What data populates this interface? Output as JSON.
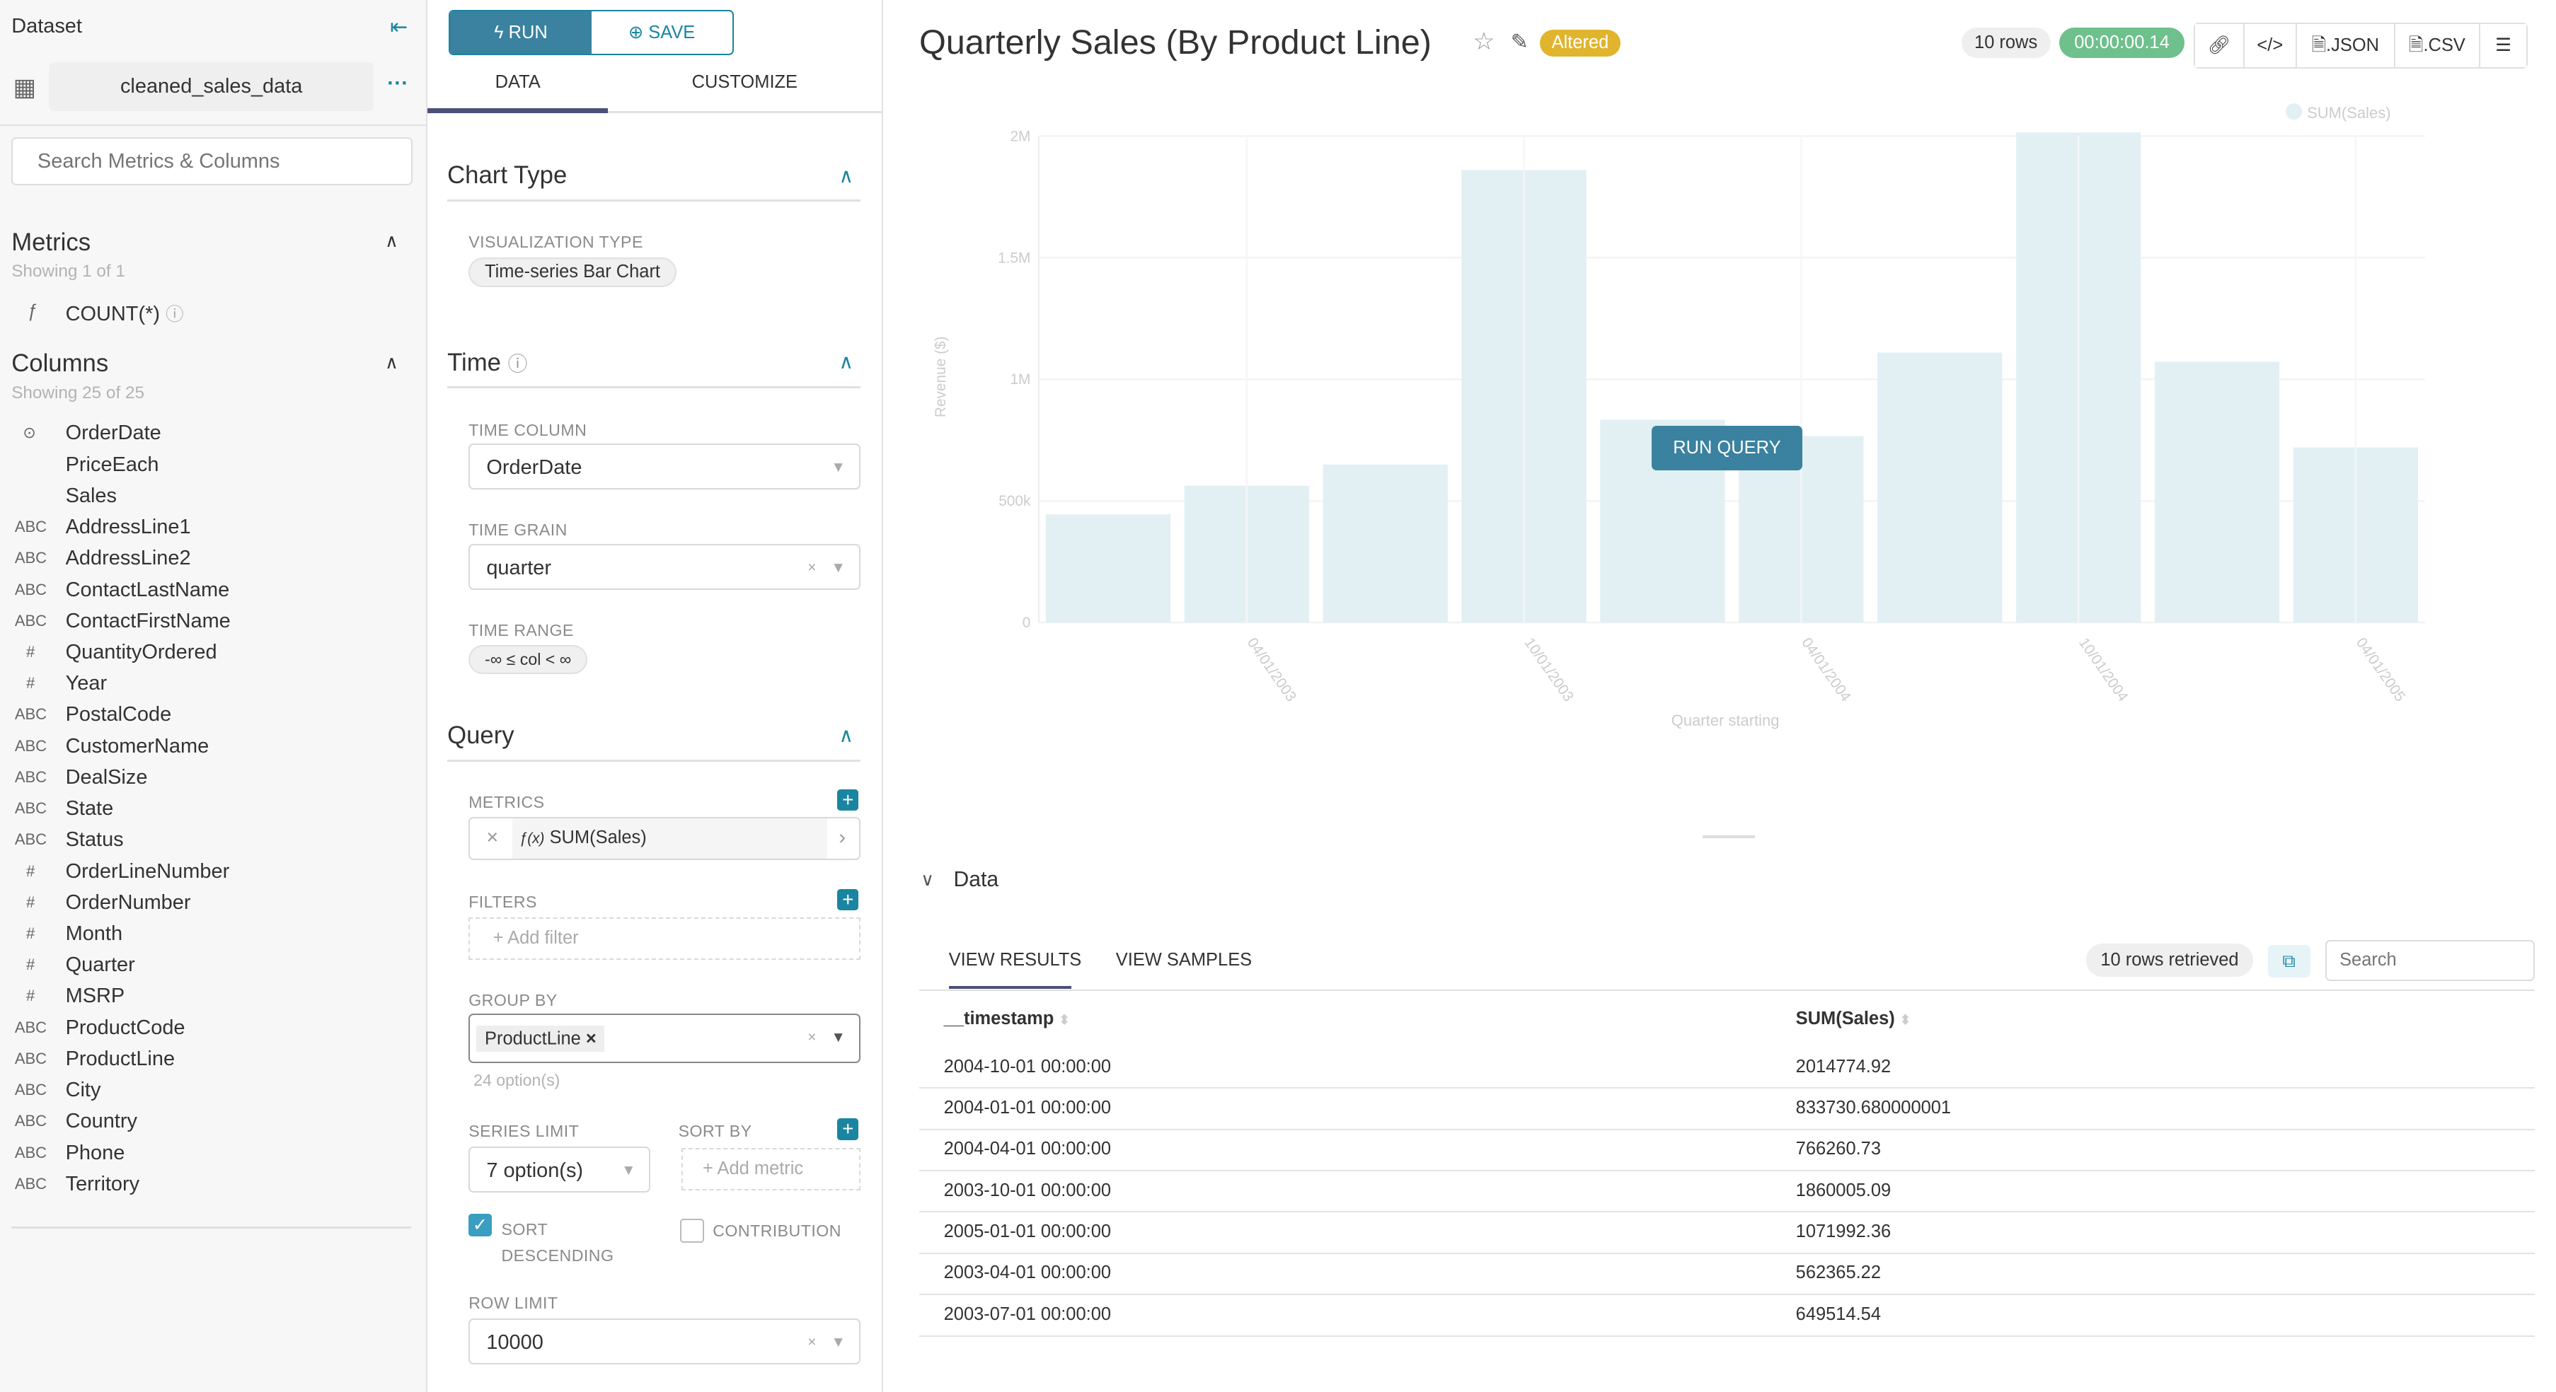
{
  "sidebar": {
    "title": "Dataset",
    "dataset_name": "cleaned_sales_data",
    "search_placeholder": "Search Metrics & Columns",
    "metrics_title": "Metrics",
    "metrics_count": "Showing 1 of 1",
    "metrics": [
      {
        "type": "ƒ",
        "name": "COUNT(*)"
      }
    ],
    "columns_title": "Columns",
    "columns_count": "Showing 25 of 25",
    "columns": [
      {
        "type": "clock",
        "name": "OrderDate"
      },
      {
        "type": "",
        "name": "PriceEach"
      },
      {
        "type": "",
        "name": "Sales"
      },
      {
        "type": "ABC",
        "name": "AddressLine1"
      },
      {
        "type": "ABC",
        "name": "AddressLine2"
      },
      {
        "type": "ABC",
        "name": "ContactLastName"
      },
      {
        "type": "ABC",
        "name": "ContactFirstName"
      },
      {
        "type": "#",
        "name": "QuantityOrdered"
      },
      {
        "type": "#",
        "name": "Year"
      },
      {
        "type": "ABC",
        "name": "PostalCode"
      },
      {
        "type": "ABC",
        "name": "CustomerName"
      },
      {
        "type": "ABC",
        "name": "DealSize"
      },
      {
        "type": "ABC",
        "name": "State"
      },
      {
        "type": "ABC",
        "name": "Status"
      },
      {
        "type": "#",
        "name": "OrderLineNumber"
      },
      {
        "type": "#",
        "name": "OrderNumber"
      },
      {
        "type": "#",
        "name": "Month"
      },
      {
        "type": "#",
        "name": "Quarter"
      },
      {
        "type": "#",
        "name": "MSRP"
      },
      {
        "type": "ABC",
        "name": "ProductCode"
      },
      {
        "type": "ABC",
        "name": "ProductLine"
      },
      {
        "type": "ABC",
        "name": "City"
      },
      {
        "type": "ABC",
        "name": "Country"
      },
      {
        "type": "ABC",
        "name": "Phone"
      },
      {
        "type": "ABC",
        "name": "Territory"
      }
    ]
  },
  "controls": {
    "run_label": "RUN",
    "save_label": "SAVE",
    "tabs": [
      "DATA",
      "CUSTOMIZE"
    ],
    "chart_type_title": "Chart Type",
    "viz_type_label": "VISUALIZATION TYPE",
    "viz_type_value": "Time-series Bar Chart",
    "time_title": "Time",
    "time_column_label": "TIME COLUMN",
    "time_column_value": "OrderDate",
    "time_grain_label": "TIME GRAIN",
    "time_grain_value": "quarter",
    "time_range_label": "TIME RANGE",
    "time_range_value": "-∞ ≤ col < ∞",
    "query_title": "Query",
    "metrics_label": "METRICS",
    "metric_value": "SUM(Sales)",
    "filters_label": "FILTERS",
    "add_filter": "Add filter",
    "group_by_label": "GROUP BY",
    "group_by_value": "ProductLine",
    "group_by_options": "24 option(s)",
    "series_limit_label": "SERIES LIMIT",
    "series_limit_value": "7 option(s)",
    "sort_by_label": "SORT BY",
    "add_metric": "Add metric",
    "sort_desc_label": "SORT DESCENDING",
    "sort_desc_checked": true,
    "contribution_label": "CONTRIBUTION",
    "contribution_checked": false,
    "row_limit_label": "ROW LIMIT",
    "row_limit_value": "10000"
  },
  "header": {
    "title": "Quarterly Sales (By Product Line)",
    "altered_badge": "Altered",
    "rows_badge": "10 rows",
    "time_badge": "00:00:00.14",
    "json_label": ".JSON",
    "csv_label": ".CSV"
  },
  "run_query_label": "RUN QUERY",
  "colors": {
    "accent": "#1a85a0",
    "bar": "#e2f0f4",
    "altered": "#e0b42c",
    "success": "#6ec08c"
  },
  "chart_data": {
    "type": "bar",
    "ylabel": "Revenue ($)",
    "xlabel": "Quarter starting",
    "legend": [
      "SUM(Sales)"
    ],
    "legend_position": "top-right",
    "ylim": [
      0,
      2000000
    ],
    "yticks": [
      "0",
      "500k",
      "1M",
      "1.5M",
      "2M"
    ],
    "xticks": [
      "04/01/2003",
      "10/01/2003",
      "04/01/2004",
      "10/01/2004",
      "04/01/2005"
    ],
    "categories": [
      "2003-01-01",
      "2003-04-01",
      "2003-07-01",
      "2003-10-01",
      "2004-01-01",
      "2004-04-01",
      "2004-07-01",
      "2004-10-01",
      "2005-01-01",
      "2005-04-01"
    ],
    "series": [
      {
        "name": "SUM(Sales)",
        "values": [
          445000,
          562365.22,
          649514.54,
          1860005.09,
          833730.68,
          766260.73,
          1110000,
          2014774.92,
          1071992.36,
          720000
        ]
      }
    ],
    "grid": true
  },
  "data_panel": {
    "title": "Data",
    "tabs": [
      "VIEW RESULTS",
      "VIEW SAMPLES"
    ],
    "rows_retrieved": "10 rows retrieved",
    "search_placeholder": "Search",
    "columns": [
      "__timestamp",
      "SUM(Sales)"
    ],
    "rows": [
      [
        "2004-10-01 00:00:00",
        "2014774.92"
      ],
      [
        "2004-01-01 00:00:00",
        "833730.680000001"
      ],
      [
        "2004-04-01 00:00:00",
        "766260.73"
      ],
      [
        "2003-10-01 00:00:00",
        "1860005.09"
      ],
      [
        "2005-01-01 00:00:00",
        "1071992.36"
      ],
      [
        "2003-04-01 00:00:00",
        "562365.22"
      ],
      [
        "2003-07-01 00:00:00",
        "649514.54"
      ]
    ]
  }
}
